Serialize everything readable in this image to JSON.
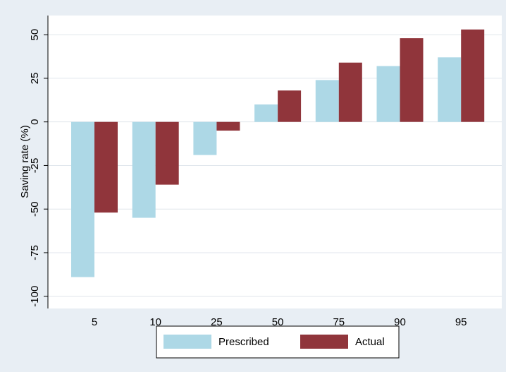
{
  "chart_data": {
    "type": "bar",
    "y_label": "Saving rate (%)",
    "categories": [
      "5",
      "10",
      "25",
      "50",
      "75",
      "90",
      "95"
    ],
    "series": [
      {
        "name": "Prescribed",
        "color": "#add8e6",
        "values": [
          -89,
          -55,
          -19,
          10,
          24,
          32,
          37
        ]
      },
      {
        "name": "Actual",
        "color": "#90353b",
        "values": [
          -52,
          -36,
          -5,
          18,
          34,
          48,
          53
        ]
      }
    ],
    "ylim": [
      -107,
      61
    ],
    "yticks": [
      -100,
      -75,
      -50,
      -25,
      0,
      25,
      50
    ],
    "grid": true,
    "legend": "bottom"
  }
}
